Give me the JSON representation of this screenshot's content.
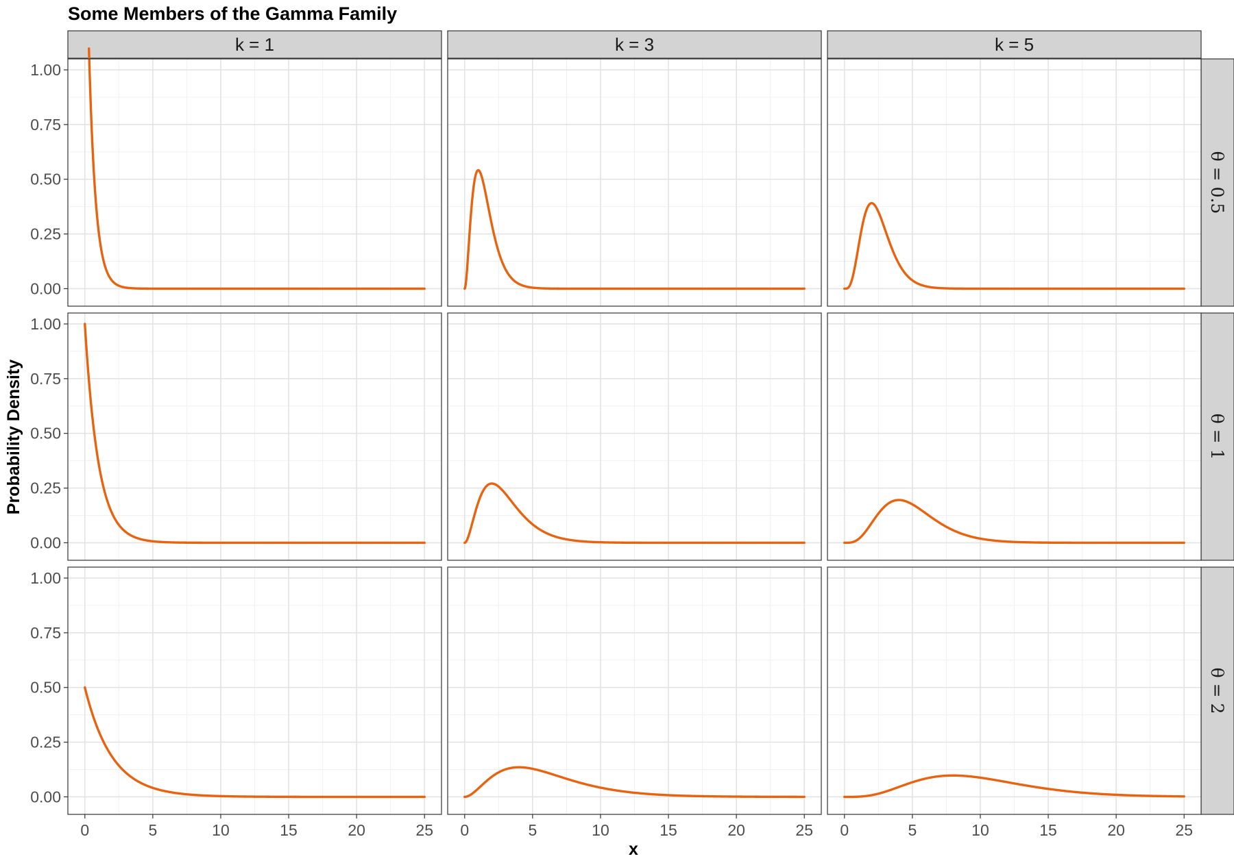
{
  "chart_data": {
    "type": "line",
    "title": "Some Members of the Gamma Family",
    "xlabel": "x",
    "ylabel": "Probability Density",
    "xlim": [
      -1.25,
      26.25
    ],
    "ylim": [
      -0.08,
      1.05
    ],
    "x_ticks": [
      0,
      5,
      10,
      15,
      20,
      25
    ],
    "x_tick_labels": [
      "0",
      "5",
      "10",
      "15",
      "20",
      "25"
    ],
    "y_ticks": [
      0,
      0.25,
      0.5,
      0.75,
      1.0
    ],
    "y_tick_labels": [
      "0.00",
      "0.25",
      "0.50",
      "0.75",
      "1.00"
    ],
    "grid": true,
    "line_color": "#E8630F",
    "col_strips": [
      "k = 1",
      "k = 3",
      "k = 5"
    ],
    "row_strips": [
      "θ = 0.5",
      "θ = 1",
      "θ = 2"
    ],
    "panels": [
      {
        "row": 0,
        "col": 0,
        "k": 1,
        "theta": 0.5,
        "x_range": [
          0.3,
          25
        ]
      },
      {
        "row": 0,
        "col": 1,
        "k": 3,
        "theta": 0.5,
        "x_range": [
          0,
          25
        ]
      },
      {
        "row": 0,
        "col": 2,
        "k": 5,
        "theta": 0.5,
        "x_range": [
          0,
          25
        ]
      },
      {
        "row": 1,
        "col": 0,
        "k": 1,
        "theta": 1,
        "x_range": [
          0,
          25
        ]
      },
      {
        "row": 1,
        "col": 1,
        "k": 3,
        "theta": 1,
        "x_range": [
          0,
          25
        ]
      },
      {
        "row": 1,
        "col": 2,
        "k": 5,
        "theta": 1,
        "x_range": [
          0,
          25
        ]
      },
      {
        "row": 2,
        "col": 0,
        "k": 1,
        "theta": 2,
        "x_range": [
          0,
          25
        ]
      },
      {
        "row": 2,
        "col": 1,
        "k": 3,
        "theta": 2,
        "x_range": [
          0,
          25
        ]
      },
      {
        "row": 2,
        "col": 2,
        "k": 5,
        "theta": 2,
        "x_range": [
          0,
          25
        ]
      }
    ]
  }
}
